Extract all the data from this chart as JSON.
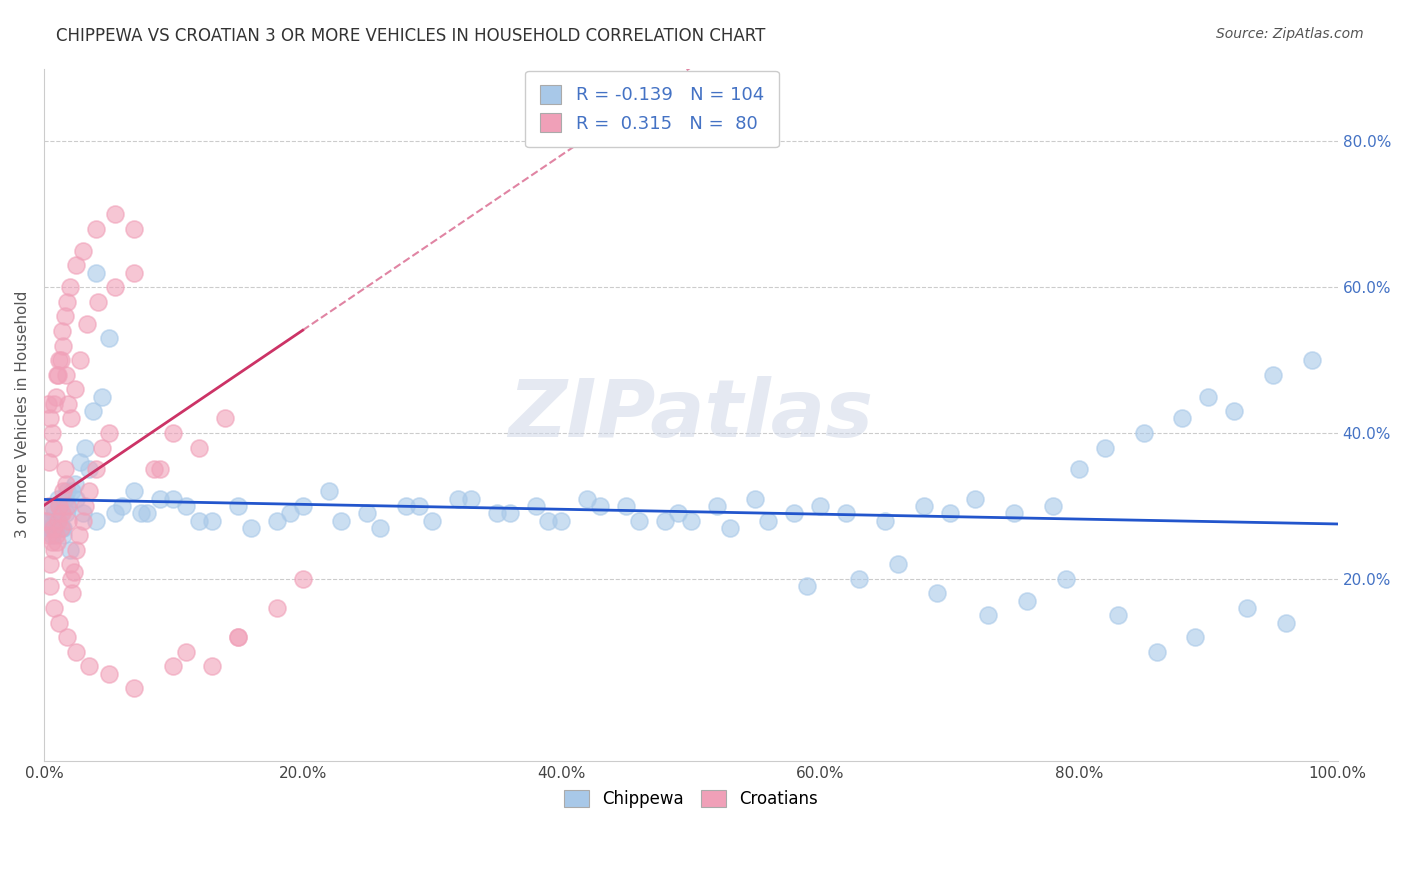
{
  "title": "CHIPPEWA VS CROATIAN 3 OR MORE VEHICLES IN HOUSEHOLD CORRELATION CHART",
  "source_text": "Source: ZipAtlas.com",
  "ylabel": "3 or more Vehicles in Household",
  "x_tick_labels": [
    "0.0%",
    "20.0%",
    "40.0%",
    "60.0%",
    "80.0%",
    "100.0%"
  ],
  "x_tick_vals": [
    0.0,
    20.0,
    40.0,
    60.0,
    80.0,
    100.0
  ],
  "y_tick_labels": [
    "20.0%",
    "40.0%",
    "60.0%",
    "80.0%"
  ],
  "y_tick_vals": [
    20.0,
    40.0,
    60.0,
    80.0
  ],
  "xlim": [
    0,
    100
  ],
  "ylim": [
    -5,
    90
  ],
  "chippewa_color": "#a8c8e8",
  "croatian_color": "#f0a0b8",
  "chippewa_line_color": "#2255cc",
  "croatian_line_color": "#cc3366",
  "chippewa_R": -0.139,
  "chippewa_N": 104,
  "croatian_R": 0.315,
  "croatian_N": 80,
  "legend_label_chippewa": "Chippewa",
  "legend_label_croatian": "Croatians",
  "watermark": "ZIPatlas",
  "background_color": "#ffffff",
  "grid_color": "#cccccc",
  "chippewa_x": [
    0.5,
    0.8,
    1.0,
    1.2,
    1.5,
    1.8,
    2.0,
    2.5,
    3.0,
    3.5,
    4.0,
    5.0,
    0.4,
    0.7,
    0.9,
    1.1,
    1.4,
    1.7,
    2.2,
    2.8,
    3.2,
    4.5,
    0.6,
    1.3,
    1.6,
    2.4,
    0.2,
    0.8,
    1.9,
    3.8,
    6.0,
    8.0,
    10.0,
    12.0,
    15.0,
    18.0,
    20.0,
    22.0,
    25.0,
    28.0,
    30.0,
    32.0,
    35.0,
    38.0,
    40.0,
    42.0,
    45.0,
    48.0,
    50.0,
    52.0,
    55.0,
    58.0,
    60.0,
    62.0,
    65.0,
    68.0,
    70.0,
    72.0,
    75.0,
    78.0,
    80.0,
    82.0,
    85.0,
    88.0,
    90.0,
    92.0,
    95.0,
    98.0,
    5.5,
    7.0,
    9.0,
    11.0,
    13.0,
    16.0,
    19.0,
    23.0,
    26.0,
    29.0,
    33.0,
    36.0,
    39.0,
    43.0,
    46.0,
    49.0,
    53.0,
    56.0,
    59.0,
    63.0,
    66.0,
    69.0,
    73.0,
    76.0,
    79.0,
    83.0,
    86.0,
    89.0,
    93.0,
    96.0,
    0.3,
    1.5,
    4.0,
    7.5
  ],
  "chippewa_y": [
    27.0,
    29.0,
    28.0,
    30.0,
    26.0,
    32.0,
    24.0,
    31.0,
    29.0,
    35.0,
    28.0,
    53.0,
    27.0,
    30.0,
    28.0,
    31.0,
    27.0,
    29.0,
    32.0,
    36.0,
    38.0,
    45.0,
    26.0,
    29.0,
    31.0,
    33.0,
    28.0,
    27.0,
    30.0,
    43.0,
    30.0,
    29.0,
    31.0,
    28.0,
    30.0,
    28.0,
    30.0,
    32.0,
    29.0,
    30.0,
    28.0,
    31.0,
    29.0,
    30.0,
    28.0,
    31.0,
    30.0,
    28.0,
    28.0,
    30.0,
    31.0,
    29.0,
    30.0,
    29.0,
    28.0,
    30.0,
    29.0,
    31.0,
    29.0,
    30.0,
    35.0,
    38.0,
    40.0,
    42.0,
    45.0,
    43.0,
    48.0,
    50.0,
    29.0,
    32.0,
    31.0,
    30.0,
    28.0,
    27.0,
    29.0,
    28.0,
    27.0,
    30.0,
    31.0,
    29.0,
    28.0,
    30.0,
    28.0,
    29.0,
    27.0,
    28.0,
    19.0,
    20.0,
    22.0,
    18.0,
    15.0,
    17.0,
    20.0,
    15.0,
    10.0,
    12.0,
    16.0,
    14.0,
    28.0,
    27.0,
    62.0,
    29.0
  ],
  "croatian_x": [
    0.2,
    0.3,
    0.4,
    0.5,
    0.6,
    0.7,
    0.8,
    0.9,
    1.0,
    1.1,
    1.2,
    1.3,
    1.4,
    1.5,
    1.6,
    1.7,
    1.8,
    1.9,
    2.0,
    2.1,
    2.2,
    2.3,
    2.5,
    2.7,
    3.0,
    3.2,
    3.5,
    4.0,
    4.5,
    5.0,
    0.3,
    0.5,
    0.7,
    0.9,
    1.1,
    1.3,
    1.5,
    1.7,
    1.9,
    2.1,
    2.4,
    2.8,
    3.3,
    4.2,
    5.5,
    7.0,
    8.5,
    10.0,
    12.0,
    14.0,
    0.4,
    0.6,
    0.8,
    1.0,
    1.2,
    1.4,
    1.6,
    1.8,
    2.0,
    2.5,
    3.0,
    4.0,
    5.5,
    7.0,
    9.0,
    11.0,
    13.0,
    15.0,
    18.0,
    20.0,
    0.5,
    0.8,
    1.2,
    1.8,
    2.5,
    3.5,
    5.0,
    7.0,
    10.0,
    15.0
  ],
  "croatian_y": [
    28.0,
    26.0,
    30.0,
    22.0,
    25.0,
    27.0,
    24.0,
    26.0,
    25.0,
    28.0,
    30.0,
    27.0,
    29.0,
    32.0,
    35.0,
    33.0,
    30.0,
    28.0,
    22.0,
    20.0,
    18.0,
    21.0,
    24.0,
    26.0,
    28.0,
    30.0,
    32.0,
    35.0,
    38.0,
    40.0,
    44.0,
    42.0,
    38.0,
    45.0,
    48.0,
    50.0,
    52.0,
    48.0,
    44.0,
    42.0,
    46.0,
    50.0,
    55.0,
    58.0,
    60.0,
    62.0,
    35.0,
    40.0,
    38.0,
    42.0,
    36.0,
    40.0,
    44.0,
    48.0,
    50.0,
    54.0,
    56.0,
    58.0,
    60.0,
    63.0,
    65.0,
    68.0,
    70.0,
    68.0,
    35.0,
    10.0,
    8.0,
    12.0,
    16.0,
    20.0,
    19.0,
    16.0,
    14.0,
    12.0,
    10.0,
    8.0,
    7.0,
    5.0,
    8.0,
    12.0
  ]
}
